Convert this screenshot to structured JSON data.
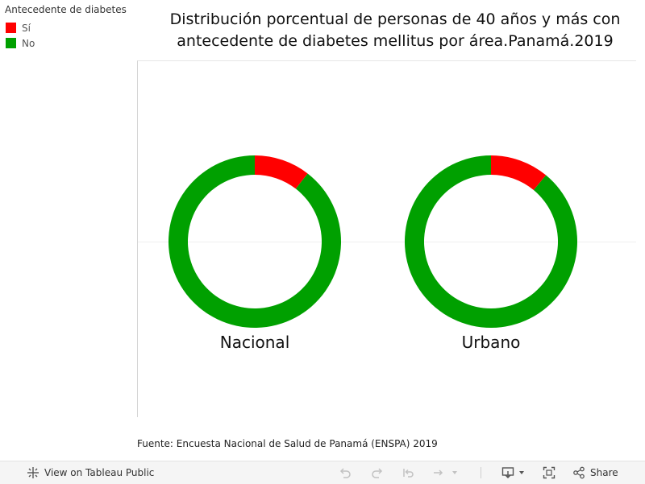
{
  "legend": {
    "title": "Antecedente de diabetes",
    "items": [
      {
        "label": "Sí",
        "color": "#ff0000"
      },
      {
        "label": "No",
        "color": "#00a000"
      }
    ]
  },
  "chart_data": {
    "type": "pie",
    "style": "donut",
    "title": "Distribución porcentual de personas de 40 años y más con antecedente de diabetes mellitus por área.Panamá.2019",
    "series_names": [
      "Sí",
      "No"
    ],
    "colors": {
      "Sí": "#ff0000",
      "No": "#00a000"
    },
    "panels": [
      {
        "label": "Nacional",
        "values": [
          10.5,
          89.5
        ]
      },
      {
        "label": "Urbano",
        "values": [
          11.0,
          89.0
        ]
      }
    ]
  },
  "source": "Fuente: Encuesta Nacional de Salud de Panamá (ENSPA) 2019",
  "toolbar": {
    "view_label": "View on Tableau Public",
    "share_label": "Share"
  }
}
